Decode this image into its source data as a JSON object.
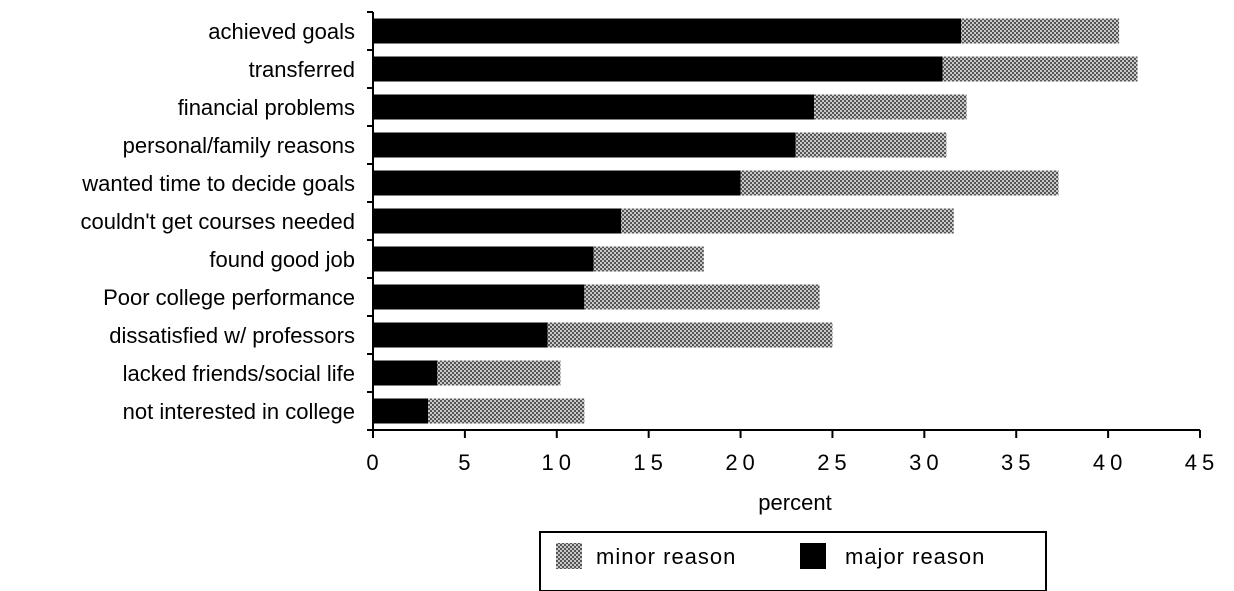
{
  "chart_data": {
    "type": "bar",
    "orientation": "horizontal",
    "stacked": true,
    "title": "",
    "xlabel": "percent",
    "ylabel": "",
    "xlim": [
      0,
      45
    ],
    "xticks": [
      0,
      5,
      10,
      15,
      20,
      25,
      30,
      35,
      40,
      45
    ],
    "grid": false,
    "legend_position": "bottom",
    "categories": [
      "achieved goals",
      "transferred",
      "financial problems",
      "personal/family reasons",
      "wanted time to decide goals",
      "couldn't get courses needed",
      "found good job",
      "Poor college performance",
      "dissatisfied w/ professors",
      "lacked friends/social life",
      "not interested in college"
    ],
    "series": [
      {
        "name": "major reason",
        "color": "#000000",
        "values": [
          32,
          31,
          24,
          23,
          20,
          13.5,
          12,
          11.5,
          9.5,
          3.5,
          3
        ]
      },
      {
        "name": "minor reason",
        "color": "#9a9a9a",
        "values": [
          8.6,
          10.6,
          8.3,
          8.2,
          17.3,
          18.1,
          6,
          12.8,
          15.5,
          6.7,
          8.5
        ]
      }
    ],
    "legend": [
      "minor reason",
      "major reason"
    ]
  }
}
